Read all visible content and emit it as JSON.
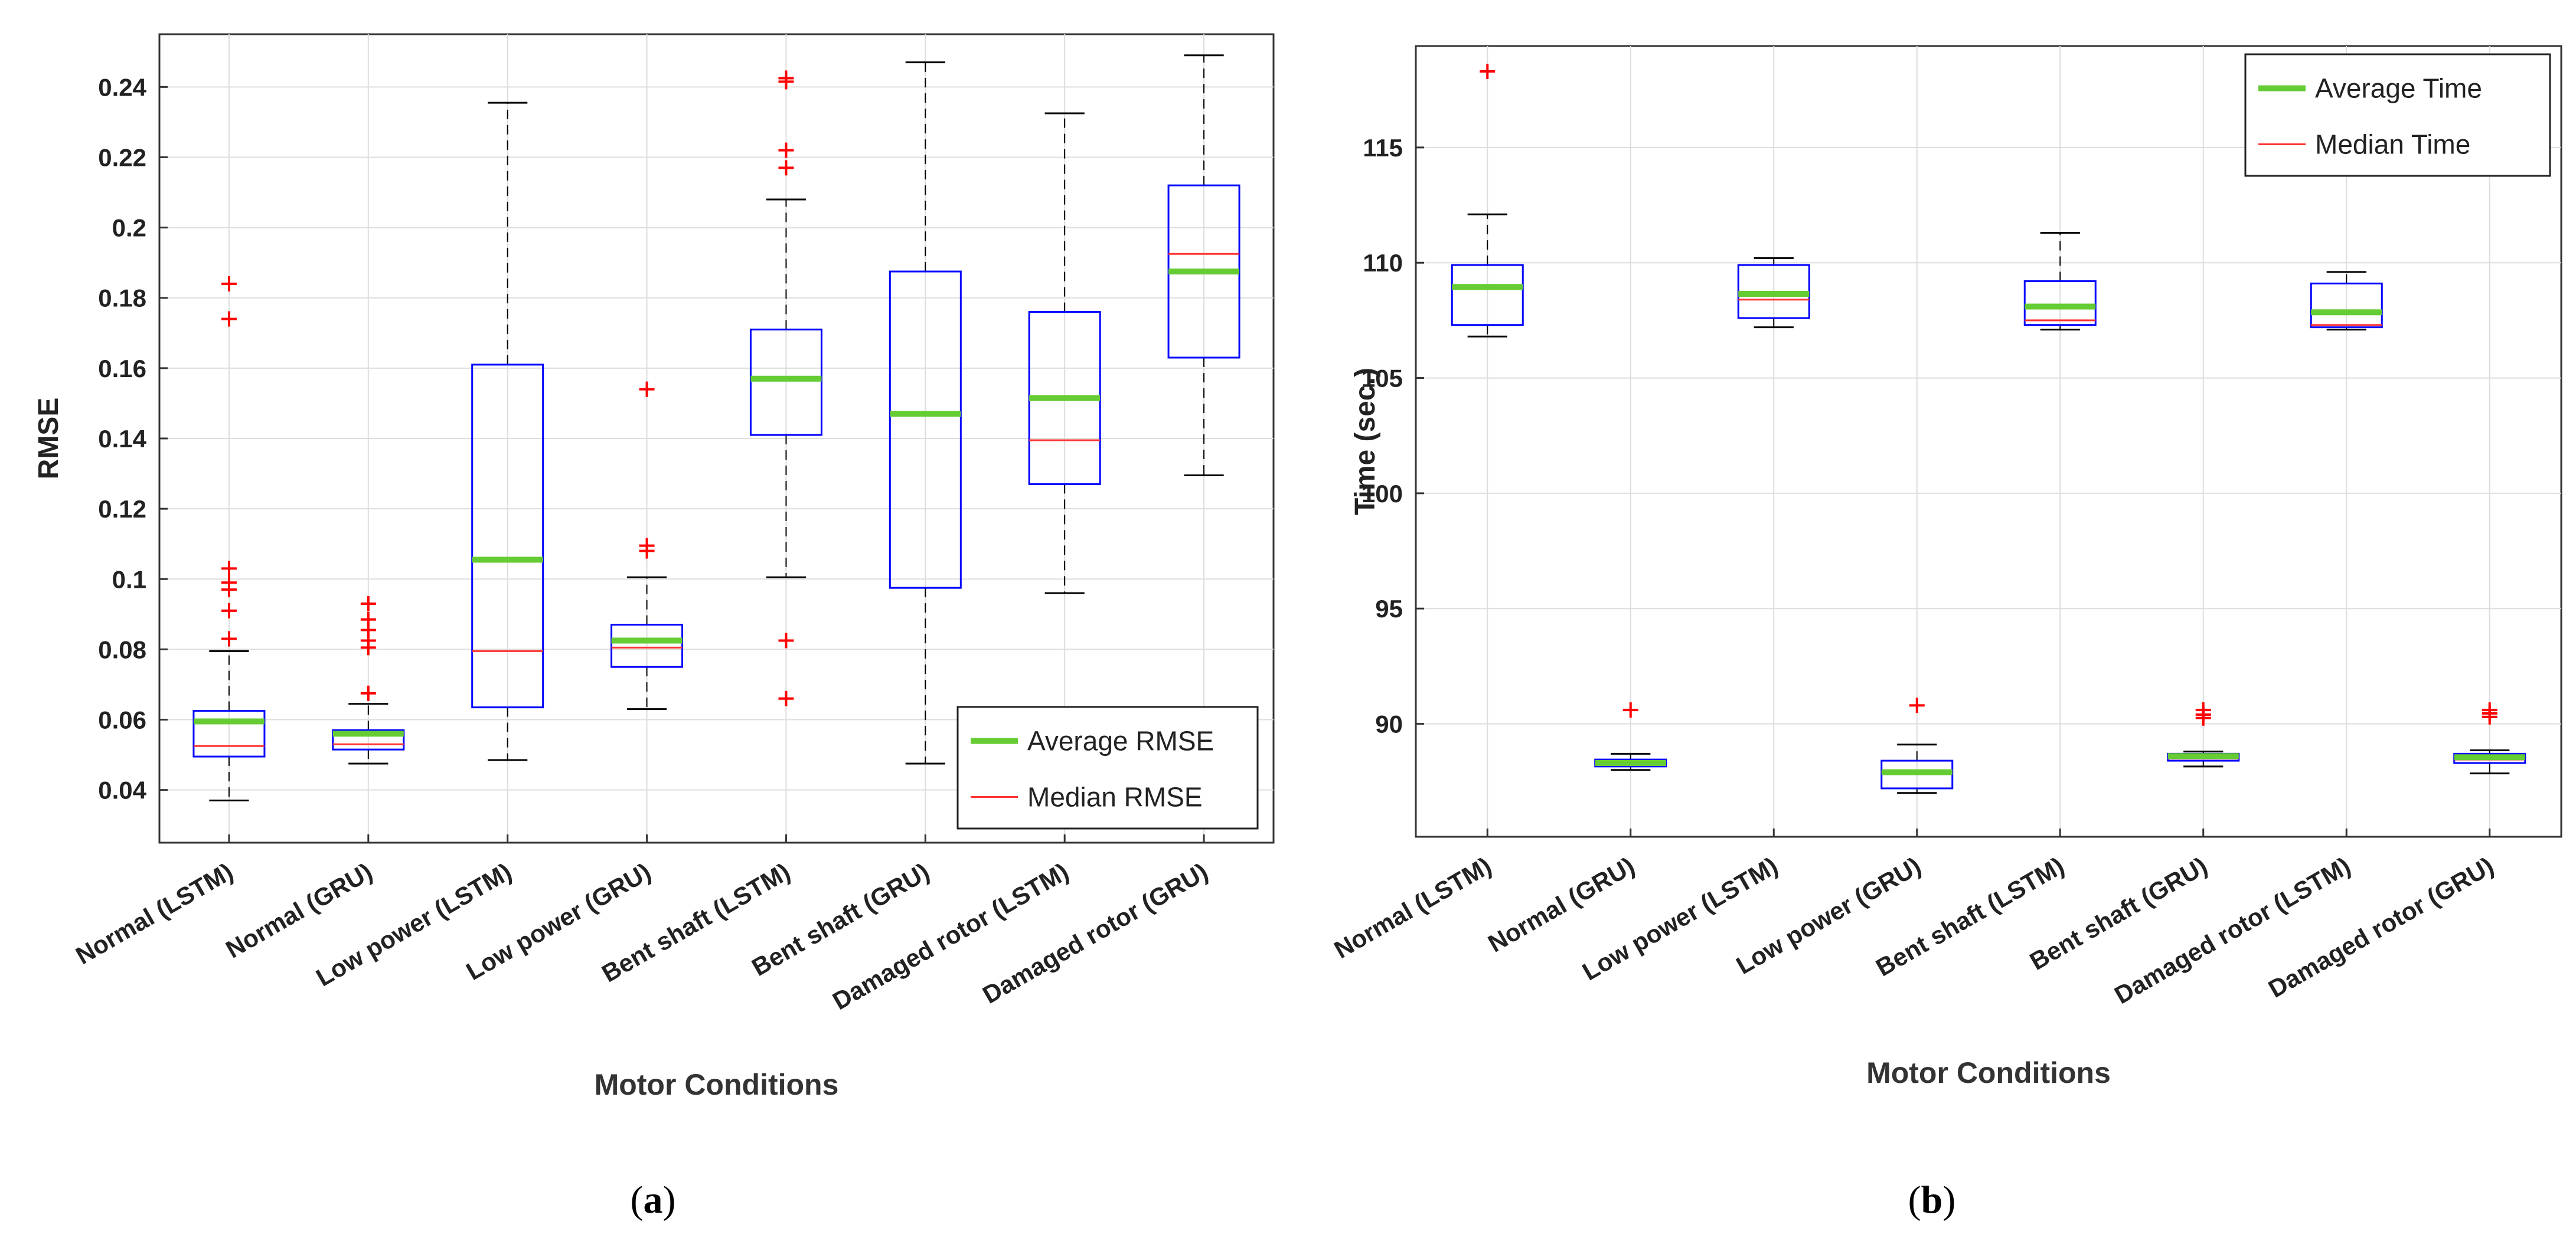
{
  "colors": {
    "box": "#0000ff",
    "average": "#66cc33",
    "median": "#ff3333",
    "outlier": "#ff0000",
    "whisker": "#000000",
    "grid": "#dddddd",
    "axis": "#333333"
  },
  "chart_data": [
    {
      "type": "box",
      "subfigure_label": "a",
      "xlabel": "Motor Conditions",
      "ylabel": "RMSE",
      "ylim": [
        0.025,
        0.255
      ],
      "yticks": [
        0.04,
        0.06,
        0.08,
        0.1,
        0.12,
        0.14,
        0.16,
        0.18,
        0.2,
        0.22,
        0.24
      ],
      "ytick_labels": [
        "0.04",
        "0.06",
        "0.08",
        "0.1",
        "0.12",
        "0.14",
        "0.16",
        "0.18",
        "0.2",
        "0.22",
        "0.24"
      ],
      "grid": true,
      "legend_position": "bottom-right",
      "legend": [
        "Average RMSE",
        "Median RMSE"
      ],
      "categories": [
        "Normal (LSTM)",
        "Normal (GRU)",
        "Low power (LSTM)",
        "Low power (GRU)",
        "Bent shaft (LSTM)",
        "Bent shaft (GRU)",
        "Damaged rotor (LSTM)",
        "Damaged rotor (GRU)"
      ],
      "boxes": [
        {
          "whisker_low": 0.037,
          "q1": 0.0495,
          "median": 0.0525,
          "mean": 0.0595,
          "q3": 0.0625,
          "whisker_high": 0.0795,
          "outliers": [
            0.083,
            0.091,
            0.097,
            0.099,
            0.103,
            0.174,
            0.184
          ]
        },
        {
          "whisker_low": 0.0475,
          "q1": 0.0515,
          "median": 0.053,
          "mean": 0.056,
          "q3": 0.057,
          "whisker_high": 0.0645,
          "outliers": [
            0.0675,
            0.0805,
            0.0825,
            0.0855,
            0.0885,
            0.093
          ]
        },
        {
          "whisker_low": 0.0485,
          "q1": 0.0635,
          "median": 0.0795,
          "mean": 0.1055,
          "q3": 0.161,
          "whisker_high": 0.2355,
          "outliers": []
        },
        {
          "whisker_low": 0.063,
          "q1": 0.075,
          "median": 0.0805,
          "mean": 0.0825,
          "q3": 0.087,
          "whisker_high": 0.1005,
          "outliers": [
            0.108,
            0.1095,
            0.154
          ]
        },
        {
          "whisker_low": 0.1005,
          "q1": 0.141,
          "median": 0.157,
          "mean": 0.157,
          "q3": 0.171,
          "whisker_high": 0.208,
          "outliers": [
            0.066,
            0.0825,
            0.217,
            0.222,
            0.2415,
            0.2425
          ]
        },
        {
          "whisker_low": 0.0475,
          "q1": 0.0975,
          "median": 0.147,
          "mean": 0.147,
          "q3": 0.1875,
          "whisker_high": 0.247,
          "outliers": []
        },
        {
          "whisker_low": 0.096,
          "q1": 0.127,
          "median": 0.1395,
          "mean": 0.1515,
          "q3": 0.176,
          "whisker_high": 0.2325,
          "outliers": []
        },
        {
          "whisker_low": 0.1295,
          "q1": 0.163,
          "median": 0.1925,
          "mean": 0.1875,
          "q3": 0.212,
          "whisker_high": 0.249,
          "outliers": []
        }
      ]
    },
    {
      "type": "box",
      "subfigure_label": "b",
      "xlabel": "Motor Conditions",
      "ylabel": "Time (sec.)",
      "ylim": [
        85.1,
        119.4
      ],
      "yticks": [
        90,
        95,
        100,
        105,
        110,
        115
      ],
      "ytick_labels": [
        "90",
        "95",
        "100",
        "105",
        "110",
        "115"
      ],
      "grid": true,
      "legend_position": "top-right",
      "legend": [
        "Average Time",
        "Median Time"
      ],
      "categories": [
        "Normal (LSTM)",
        "Normal (GRU)",
        "Low power (LSTM)",
        "Low power (GRU)",
        "Bent shaft (LSTM)",
        "Bent shaft (GRU)",
        "Damaged rotor (LSTM)",
        "Damaged rotor (GRU)"
      ],
      "boxes": [
        {
          "whisker_low": 106.8,
          "q1": 107.3,
          "median": 108.95,
          "mean": 108.95,
          "q3": 109.9,
          "whisker_high": 112.1,
          "outliers": [
            118.3
          ]
        },
        {
          "whisker_low": 88.0,
          "q1": 88.15,
          "median": 88.3,
          "mean": 88.3,
          "q3": 88.45,
          "whisker_high": 88.7,
          "outliers": [
            90.6
          ]
        },
        {
          "whisker_low": 107.2,
          "q1": 107.6,
          "median": 108.4,
          "mean": 108.65,
          "q3": 109.9,
          "whisker_high": 110.2,
          "outliers": []
        },
        {
          "whisker_low": 87.0,
          "q1": 87.2,
          "median": 87.9,
          "mean": 87.9,
          "q3": 88.4,
          "whisker_high": 89.1,
          "outliers": [
            90.8
          ]
        },
        {
          "whisker_low": 107.1,
          "q1": 107.3,
          "median": 107.5,
          "mean": 108.1,
          "q3": 109.2,
          "whisker_high": 111.3,
          "outliers": []
        },
        {
          "whisker_low": 88.15,
          "q1": 88.4,
          "median": 88.5,
          "mean": 88.6,
          "q3": 88.7,
          "whisker_high": 88.8,
          "outliers": [
            90.25,
            90.4,
            90.6
          ]
        },
        {
          "whisker_low": 107.1,
          "q1": 107.2,
          "median": 107.3,
          "mean": 107.85,
          "q3": 109.1,
          "whisker_high": 109.6,
          "outliers": []
        },
        {
          "whisker_low": 87.85,
          "q1": 88.3,
          "median": 88.45,
          "mean": 88.55,
          "q3": 88.7,
          "whisker_high": 88.85,
          "outliers": [
            90.3,
            90.45,
            90.6
          ]
        }
      ]
    }
  ]
}
